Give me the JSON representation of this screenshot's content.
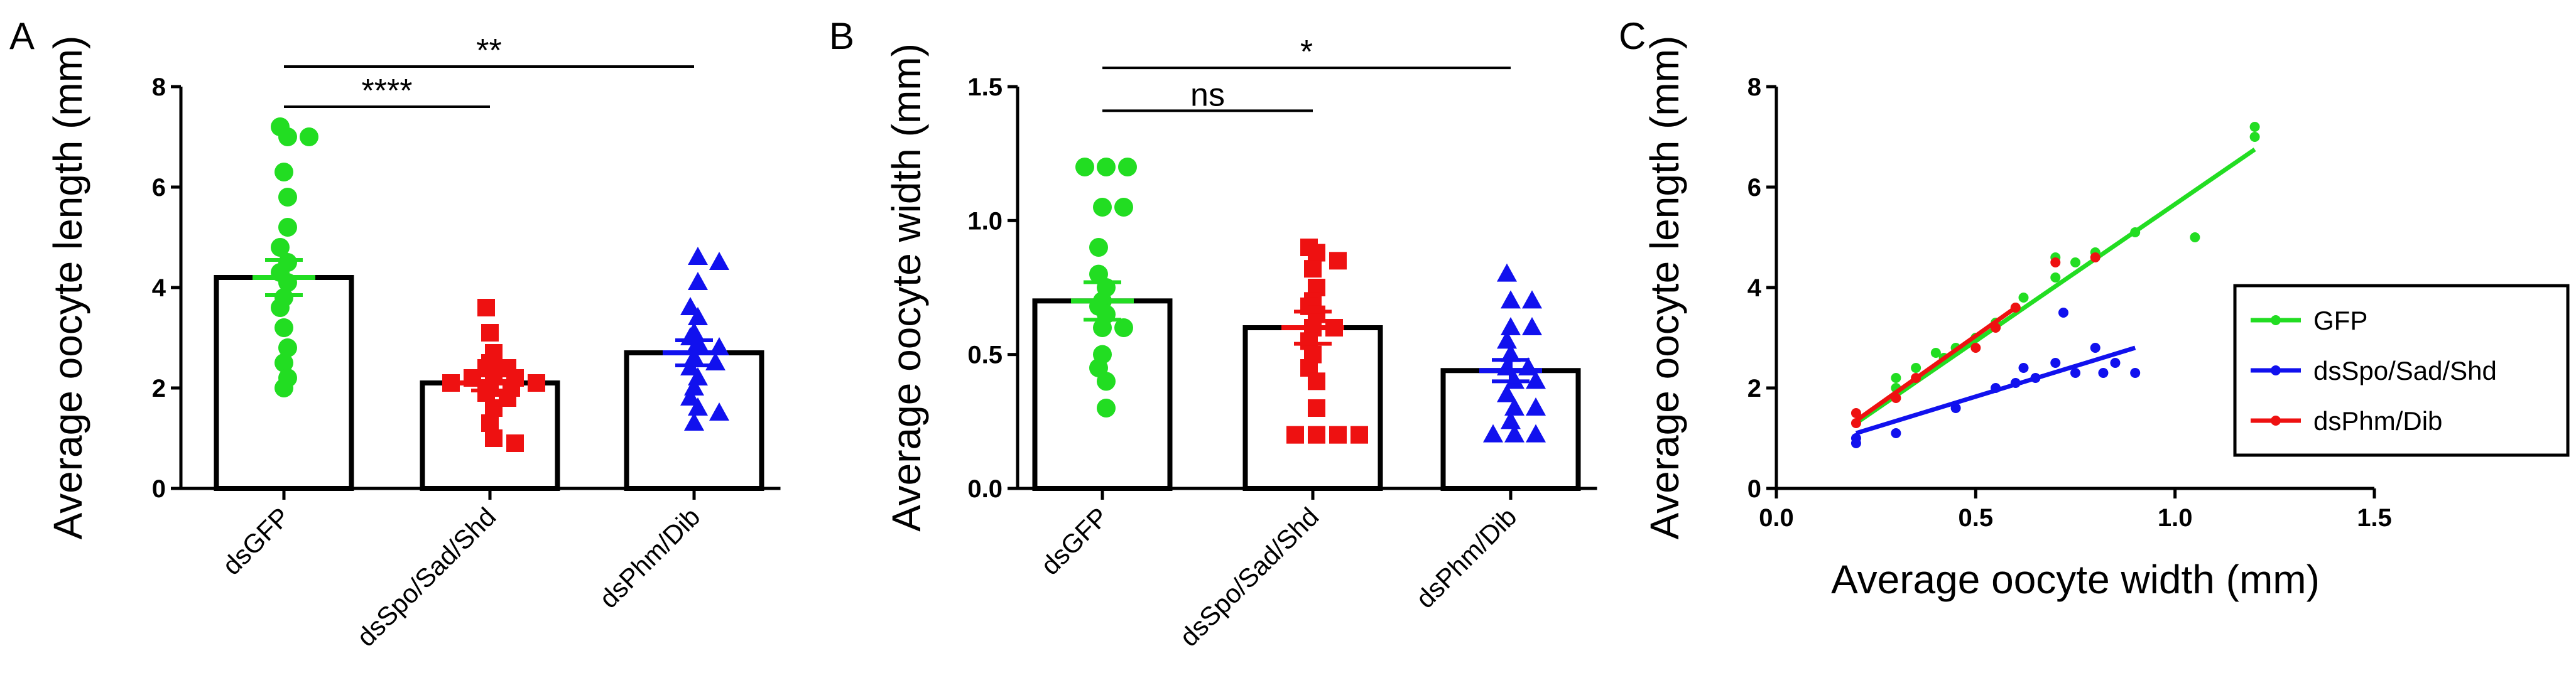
{
  "chart_data": [
    {
      "panel": "A",
      "type": "bar",
      "ylabel": "Average oocyte length (mm)",
      "xlabel": "",
      "ylim": [
        0,
        8
      ],
      "yticks": [
        "0",
        "2",
        "4",
        "6",
        "8"
      ],
      "categories": [
        "dsGFP",
        "dsSpo/Sad/Shd",
        "dsPhm/Dib"
      ],
      "colors": [
        "#22DD22",
        "#EE1111",
        "#1111EE"
      ],
      "markers": [
        "circle",
        "square",
        "triangle"
      ],
      "means": [
        4.2,
        2.1,
        2.7
      ],
      "sem": [
        0.35,
        0.15,
        0.25
      ],
      "points": [
        [
          7.2,
          7.0,
          7.0,
          6.3,
          5.8,
          5.2,
          4.8,
          4.5,
          4.3,
          4.1,
          3.8,
          3.6,
          3.2,
          2.8,
          2.5,
          2.2,
          2.0
        ],
        [
          3.6,
          3.1,
          2.7,
          2.5,
          2.4,
          2.4,
          2.3,
          2.2,
          2.2,
          2.1,
          2.1,
          2.0,
          2.0,
          1.9,
          1.8,
          1.6,
          1.3,
          1.0,
          0.9
        ],
        [
          4.6,
          4.5,
          4.1,
          3.6,
          3.4,
          3.1,
          3.0,
          2.9,
          2.8,
          2.6,
          2.5,
          2.4,
          2.2,
          2.0,
          1.8,
          1.6,
          1.5,
          1.3
        ]
      ],
      "significance": [
        {
          "from": 0,
          "to": 2,
          "label": "**",
          "level": 8.4
        },
        {
          "from": 0,
          "to": 1,
          "label": "****",
          "level": 7.6
        }
      ]
    },
    {
      "panel": "B",
      "type": "bar",
      "ylabel": "Average oocyte width (mm)",
      "xlabel": "",
      "ylim": [
        0,
        1.5
      ],
      "yticks": [
        "0.0",
        "0.5",
        "1.0",
        "1.5"
      ],
      "categories": [
        "dsGFP",
        "dsSpo/Sad/Shd",
        "dsPhm/Dib"
      ],
      "colors": [
        "#22DD22",
        "#EE1111",
        "#1111EE"
      ],
      "markers": [
        "circle",
        "square",
        "triangle"
      ],
      "means": [
        0.7,
        0.6,
        0.44
      ],
      "sem": [
        0.07,
        0.06,
        0.04
      ],
      "points": [
        [
          1.2,
          1.2,
          1.2,
          1.05,
          1.05,
          0.9,
          0.8,
          0.75,
          0.7,
          0.68,
          0.65,
          0.6,
          0.6,
          0.5,
          0.45,
          0.4,
          0.3
        ],
        [
          0.9,
          0.88,
          0.85,
          0.82,
          0.75,
          0.7,
          0.68,
          0.65,
          0.6,
          0.6,
          0.55,
          0.5,
          0.45,
          0.4,
          0.3,
          0.2,
          0.2,
          0.2,
          0.2
        ],
        [
          0.8,
          0.7,
          0.7,
          0.6,
          0.6,
          0.55,
          0.5,
          0.45,
          0.45,
          0.4,
          0.4,
          0.35,
          0.3,
          0.3,
          0.25,
          0.2,
          0.2,
          0.2
        ]
      ],
      "significance": [
        {
          "from": 0,
          "to": 2,
          "label": "*",
          "level": 1.57
        },
        {
          "from": 0,
          "to": 1,
          "label": "ns",
          "level": 1.41
        }
      ]
    },
    {
      "panel": "C",
      "type": "scatter",
      "xlabel": "Average oocyte width (mm)",
      "ylabel": "Average oocyte length (mm)",
      "xlim": [
        0,
        1.5
      ],
      "ylim": [
        0,
        8
      ],
      "xticks": [
        "0.0",
        "0.5",
        "1.0",
        "1.5"
      ],
      "yticks": [
        "0",
        "2",
        "4",
        "6",
        "8"
      ],
      "legend_position": "right",
      "series": [
        {
          "name": "GFP",
          "color": "#22DD22",
          "fit": [
            [
              0.2,
              1.3
            ],
            [
              1.2,
              6.75
            ]
          ],
          "points": [
            [
              0.3,
              2.0
            ],
            [
              0.3,
              2.2
            ],
            [
              0.35,
              2.4
            ],
            [
              0.4,
              2.7
            ],
            [
              0.42,
              2.6
            ],
            [
              0.45,
              2.8
            ],
            [
              0.5,
              3.0
            ],
            [
              0.55,
              3.3
            ],
            [
              0.6,
              3.6
            ],
            [
              0.62,
              3.8
            ],
            [
              0.7,
              4.2
            ],
            [
              0.7,
              4.6
            ],
            [
              0.75,
              4.5
            ],
            [
              0.8,
              4.7
            ],
            [
              0.9,
              5.1
            ],
            [
              1.05,
              5.0
            ],
            [
              1.2,
              7.0
            ],
            [
              1.2,
              7.2
            ]
          ]
        },
        {
          "name": "dsSpo/Sad/Shd",
          "color": "#1111EE",
          "fit": [
            [
              0.2,
              1.1
            ],
            [
              0.9,
              2.8
            ]
          ],
          "points": [
            [
              0.2,
              0.9
            ],
            [
              0.2,
              1.0
            ],
            [
              0.3,
              1.1
            ],
            [
              0.45,
              1.6
            ],
            [
              0.55,
              2.0
            ],
            [
              0.6,
              2.1
            ],
            [
              0.62,
              2.4
            ],
            [
              0.65,
              2.2
            ],
            [
              0.7,
              2.5
            ],
            [
              0.72,
              3.5
            ],
            [
              0.75,
              2.3
            ],
            [
              0.8,
              2.8
            ],
            [
              0.82,
              2.3
            ],
            [
              0.85,
              2.5
            ],
            [
              0.9,
              2.3
            ]
          ]
        },
        {
          "name": "dsPhm/Dib",
          "color": "#EE1111",
          "fit": [
            [
              0.2,
              1.35
            ],
            [
              0.6,
              3.6
            ]
          ],
          "points": [
            [
              0.2,
              1.3
            ],
            [
              0.2,
              1.5
            ],
            [
              0.3,
              1.8
            ],
            [
              0.35,
              2.2
            ],
            [
              0.5,
              2.8
            ],
            [
              0.55,
              3.2
            ],
            [
              0.6,
              3.6
            ],
            [
              0.7,
              4.5
            ],
            [
              0.8,
              4.6
            ]
          ]
        }
      ]
    }
  ],
  "labels": {
    "panel_a": "A",
    "panel_b": "B",
    "panel_c": "C"
  }
}
